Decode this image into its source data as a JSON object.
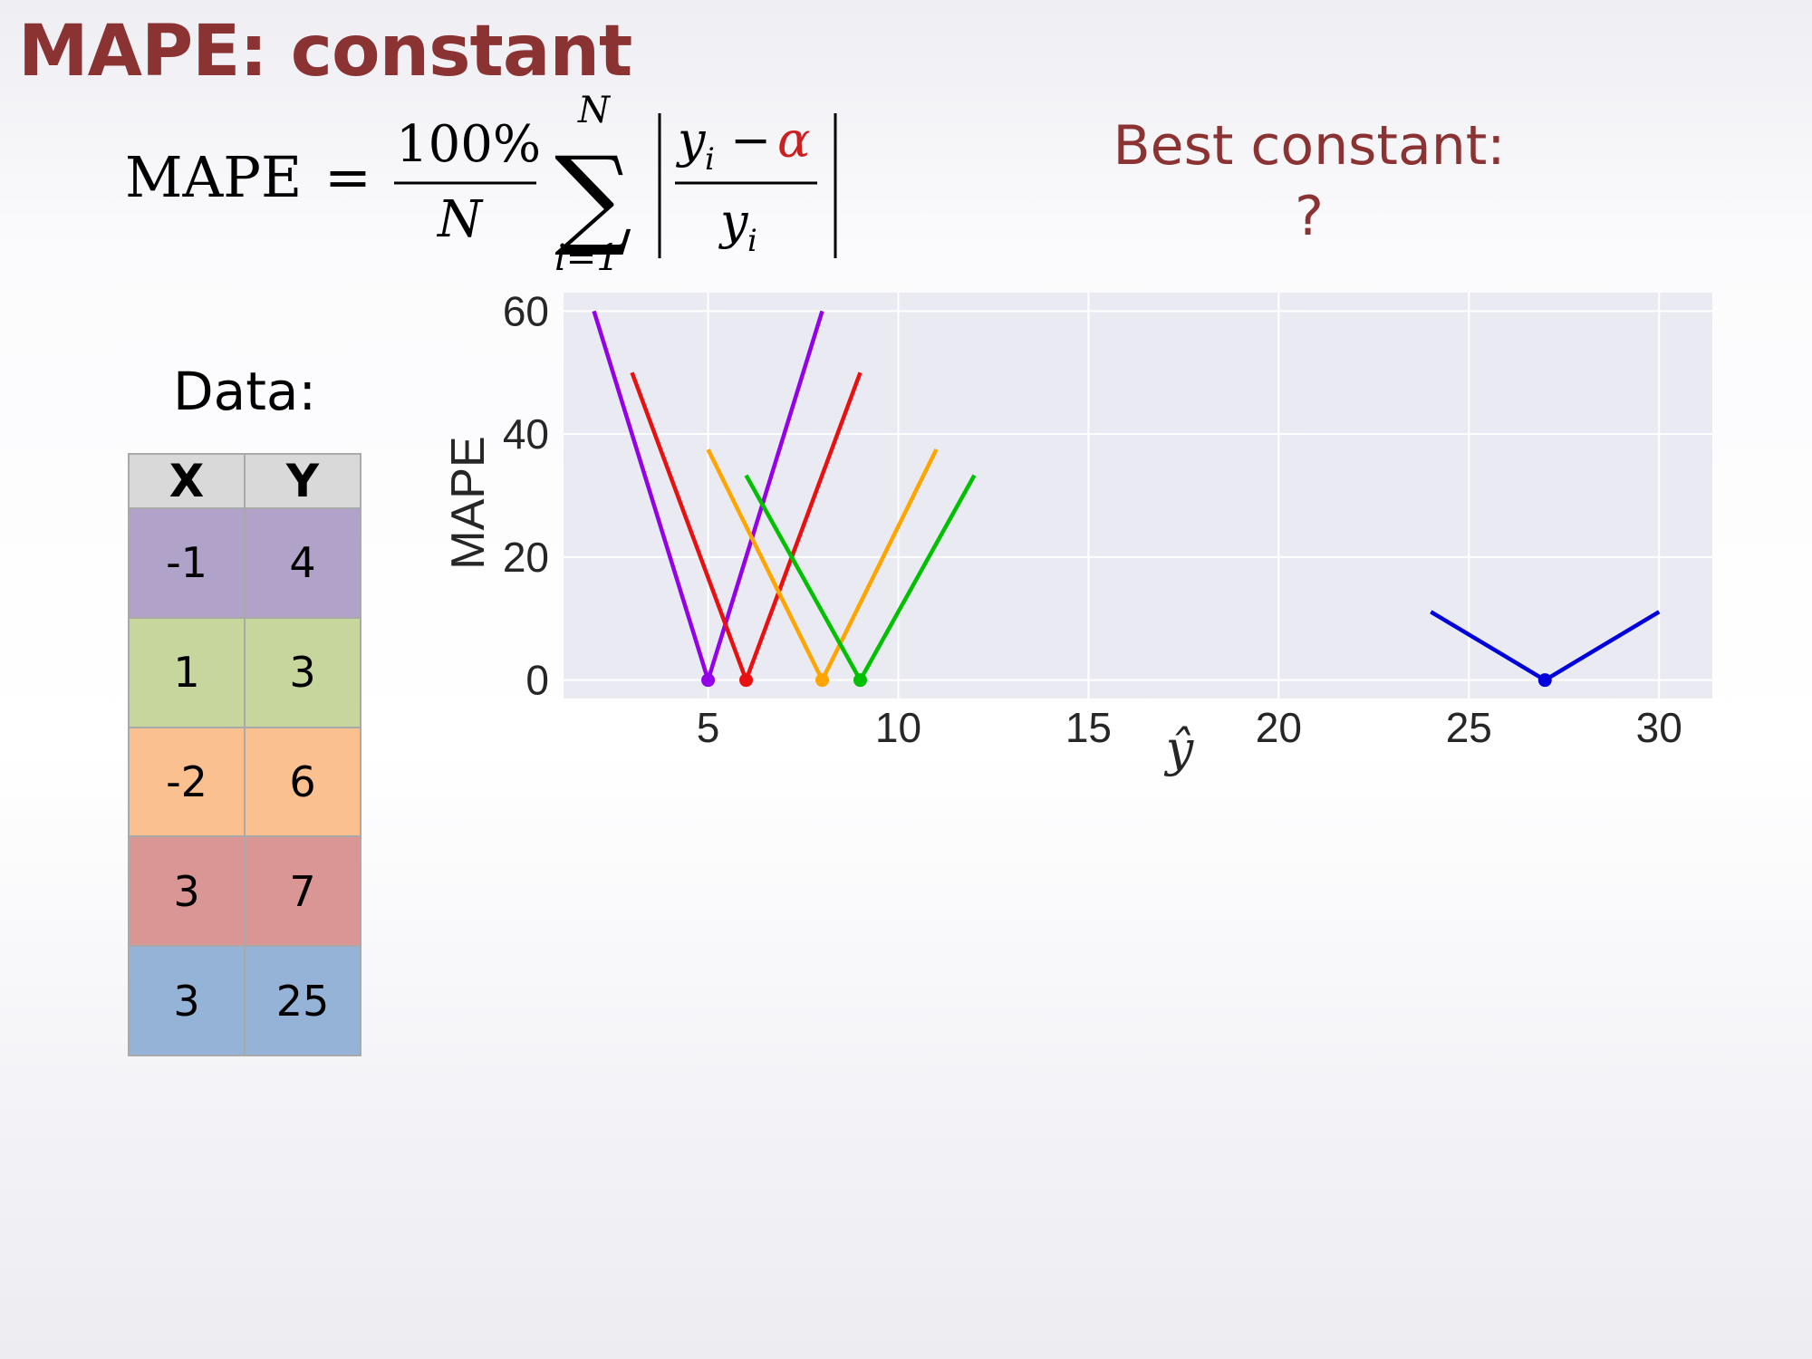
{
  "slide": {
    "title": "MAPE: constant",
    "best_constant_label": "Best constant:",
    "best_constant_value": "?",
    "data_label": "Data:",
    "colors": {
      "title": "#8b3232",
      "alpha": "#cc1f1f"
    }
  },
  "formula": {
    "lhs": "MAPE",
    "equals": "=",
    "numerator": "100%",
    "denominator": "N",
    "sum_symbol": "∑",
    "sum_upper": "N",
    "sum_lower": "i=1",
    "frac_num_left": "y",
    "frac_num_sub": "i",
    "minus": "−",
    "alpha": "α",
    "frac_den": "y",
    "frac_den_sub": "i"
  },
  "table": {
    "headers": [
      "X",
      "Y"
    ],
    "rows": [
      {
        "x": "-1",
        "y": "4",
        "color": "#b0a2c8"
      },
      {
        "x": "1",
        "y": "3",
        "color": "#c6d69c"
      },
      {
        "x": "-2",
        "y": "6",
        "color": "#fac090"
      },
      {
        "x": "3",
        "y": "7",
        "color": "#da9694"
      },
      {
        "x": "3",
        "y": "25",
        "color": "#95b3d7"
      }
    ]
  },
  "chart_data": {
    "type": "line",
    "xlabel": "ŷ",
    "ylabel": "MAPE",
    "xlim": [
      1.2,
      31.4
    ],
    "ylim": [
      -3,
      63
    ],
    "xticks": [
      5,
      10,
      15,
      20,
      25,
      30
    ],
    "yticks": [
      0,
      20,
      40,
      60
    ],
    "grid": true,
    "background": "#eaeaf2",
    "series": [
      {
        "color": "#9400e8",
        "x": [
          2,
          5,
          8
        ],
        "y": [
          60,
          0,
          60
        ]
      },
      {
        "color": "#e81010",
        "x": [
          3,
          6,
          9
        ],
        "y": [
          50,
          0,
          50
        ]
      },
      {
        "color": "#ffa500",
        "x": [
          5,
          8,
          11
        ],
        "y": [
          37.5,
          0,
          37.5
        ]
      },
      {
        "color": "#00c000",
        "x": [
          6,
          9,
          12
        ],
        "y": [
          33.3,
          0,
          33.3
        ]
      },
      {
        "color": "#0000dd",
        "x": [
          24,
          27,
          30
        ],
        "y": [
          11.1,
          0,
          11.1
        ]
      }
    ]
  }
}
